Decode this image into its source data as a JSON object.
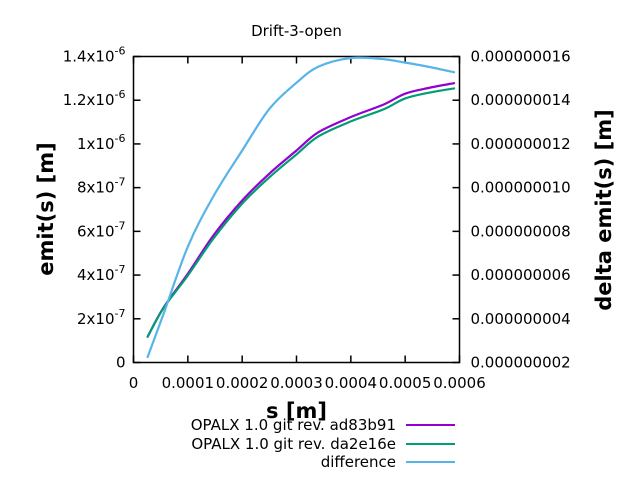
{
  "chart_data": {
    "type": "line",
    "title": "Drift-3-open",
    "xlabel": "s [m]",
    "ylabel_left": "emit(s) [m]",
    "ylabel_right": "delta emit(s) [m]",
    "xlim": [
      0,
      0.0006
    ],
    "ylim_left": [
      0,
      1.4e-06
    ],
    "ylim_right": [
      2e-09,
      1.6e-08
    ],
    "grid": false,
    "legend_position": "below-right",
    "background_color": "#ffffff",
    "axis_color": "#000000",
    "text_color": "#000000",
    "x_ticks": {
      "values": [
        0,
        0.0001,
        0.0002,
        0.0003,
        0.0004,
        0.0005,
        0.0006
      ],
      "labels": [
        "0",
        "0.0001",
        "0.0002",
        "0.0003",
        "0.0004",
        "0.0005",
        "0.0006"
      ]
    },
    "y_ticks_left": {
      "values": [
        0,
        2e-07,
        4e-07,
        6e-07,
        8e-07,
        1e-06,
        1.2e-06,
        1.4e-06
      ],
      "labels": [
        "0",
        "2x10^-7",
        "4x10^-7",
        "6x10^-7",
        "8x10^-7",
        "1x10^-6",
        "1.2x10^-6",
        "1.4x10^-6"
      ]
    },
    "y_ticks_right": {
      "values": [
        2e-09,
        4e-09,
        6e-09,
        8e-09,
        1e-08,
        1.2e-08,
        1.4e-08,
        1.6e-08
      ],
      "labels": [
        "0.000000002",
        "0.000000004",
        "0.000000006",
        "0.000000008",
        "0.000000010",
        "0.000000012",
        "0.000000014",
        "0.000000016"
      ]
    },
    "x": [
      2.6e-05,
      5.5e-05,
      0.0001,
      0.000147,
      0.0002,
      0.00025,
      0.0003,
      0.00034,
      0.0004,
      0.00046,
      0.0005,
      0.000545,
      0.00059
    ],
    "series": [
      {
        "id": "emit-ad83b91",
        "name": "OPALX 1.0 git rev. ad83b91",
        "color": "#9400d3",
        "axis": "left",
        "values": [
          1.18e-07,
          2.5e-07,
          4.06e-07,
          5.81e-07,
          7.41e-07,
          8.64e-07,
          9.7e-07,
          1.053e-06,
          1.123e-06,
          1.18e-06,
          1.23e-06,
          1.257e-06,
          1.278e-06
        ]
      },
      {
        "id": "emit-da2e16e",
        "name": "OPALX 1.0 git rev. da2e16e",
        "color": "#009e73",
        "axis": "left",
        "values": [
          1.18e-07,
          2.48e-07,
          3.98e-07,
          5.67e-07,
          7.27e-07,
          8.47e-07,
          9.52e-07,
          1.034e-06,
          1.103e-06,
          1.158e-06,
          1.208e-06,
          1.235e-06,
          1.254e-06
        ]
      },
      {
        "id": "difference",
        "name": "difference",
        "color": "#56b4e9",
        "axis": "right",
        "values": [
          2.25e-09,
          4.2e-09,
          7.3e-09,
          9.6e-09,
          1.17e-08,
          1.36e-08,
          1.48e-08,
          1.553e-08,
          1.593e-08,
          1.588e-08,
          1.572e-08,
          1.552e-08,
          1.528e-08
        ]
      }
    ]
  }
}
